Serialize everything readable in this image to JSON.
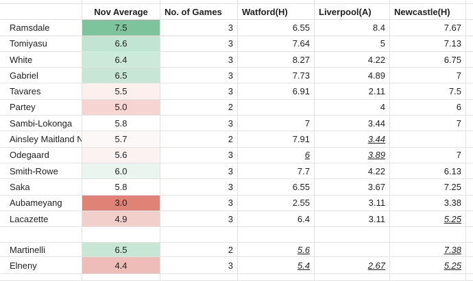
{
  "headers": {
    "player": "",
    "avg": "Nov Average",
    "games": "No. of Games",
    "m1": "Watford(H)",
    "m2": "Liverpool(A)",
    "m3": "Newcastle(H)"
  },
  "rows": [
    {
      "name": "Ramsdale",
      "avg": "7.5",
      "avg_color": "#7dc39b",
      "games": "3",
      "m1": "6.55",
      "m2": "8.4",
      "m3": "7.67",
      "m1_u": false,
      "m2_u": false,
      "m3_u": false
    },
    {
      "name": "Tomiyasu",
      "avg": "6.6",
      "avg_color": "#c2e4d2",
      "games": "3",
      "m1": "7.64",
      "m2": "5",
      "m3": "7.13",
      "m1_u": false,
      "m2_u": false,
      "m3_u": false
    },
    {
      "name": "White",
      "avg": "6.4",
      "avg_color": "#cde9da",
      "games": "3",
      "m1": "8.27",
      "m2": "4.22",
      "m3": "6.75",
      "m1_u": false,
      "m2_u": false,
      "m3_u": false
    },
    {
      "name": "Gabriel",
      "avg": "6.5",
      "avg_color": "#c8e6d5",
      "games": "3",
      "m1": "7.73",
      "m2": "4.89",
      "m3": "7",
      "m1_u": false,
      "m2_u": false,
      "m3_u": false
    },
    {
      "name": "Tavares",
      "avg": "5.5",
      "avg_color": "#fcefee",
      "games": "3",
      "m1": "6.91",
      "m2": "2.11",
      "m3": "7.5",
      "m1_u": false,
      "m2_u": false,
      "m3_u": false
    },
    {
      "name": "Partey",
      "avg": "5.0",
      "avg_color": "#f5d4d2",
      "games": "2",
      "m1": "",
      "m2": "4",
      "m3": "6",
      "m1_u": false,
      "m2_u": false,
      "m3_u": false
    },
    {
      "name": "Sambi-Lokonga",
      "avg": "5.8",
      "avg_color": "#ffffff",
      "games": "3",
      "m1": "7",
      "m2": "3.44",
      "m3": "7",
      "m1_u": false,
      "m2_u": false,
      "m3_u": false
    },
    {
      "name": "Ainsley Maitland Niles",
      "avg": "5.7",
      "avg_color": "#fdf8f8",
      "games": "2",
      "m1": "7.91",
      "m2": "3.44",
      "m3": "",
      "m1_u": false,
      "m2_u": true,
      "m3_u": false
    },
    {
      "name": "Odegaard",
      "avg": "5.6",
      "avg_color": "#fcf2f1",
      "games": "3",
      "m1": "6",
      "m2": "3.89",
      "m3": "7",
      "m1_u": true,
      "m2_u": true,
      "m3_u": false
    },
    {
      "name": "Smith-Rowe",
      "avg": "6.0",
      "avg_color": "#eaf5ef",
      "games": "3",
      "m1": "7.7",
      "m2": "4.22",
      "m3": "6.13",
      "m1_u": false,
      "m2_u": false,
      "m3_u": false
    },
    {
      "name": "Saka",
      "avg": "5.8",
      "avg_color": "#ffffff",
      "games": "3",
      "m1": "6.55",
      "m2": "3.67",
      "m3": "7.25",
      "m1_u": false,
      "m2_u": false,
      "m3_u": false
    },
    {
      "name": "Aubameyang",
      "avg": "3.0",
      "avg_color": "#e08276",
      "games": "3",
      "m1": "2.55",
      "m2": "3.11",
      "m3": "3.38",
      "m1_u": false,
      "m2_u": false,
      "m3_u": false
    },
    {
      "name": "Lacazette",
      "avg": "4.9",
      "avg_color": "#f3cfcc",
      "games": "3",
      "m1": "6.4",
      "m2": "3.11",
      "m3": "5.25",
      "m1_u": false,
      "m2_u": false,
      "m3_u": true
    }
  ],
  "rows2": [
    {
      "name": "Martinelli",
      "avg": "6.5",
      "avg_color": "#c8e6d5",
      "games": "2",
      "m1": "5.6",
      "m2": "",
      "m3": "7.38",
      "m1_u": true,
      "m2_u": false,
      "m3_u": true
    },
    {
      "name": "Elneny",
      "avg": "4.4",
      "avg_color": "#eebdb8",
      "games": "3",
      "m1": "5.4",
      "m2": "2.67",
      "m3": "5.25",
      "m1_u": true,
      "m2_u": true,
      "m3_u": true
    }
  ]
}
